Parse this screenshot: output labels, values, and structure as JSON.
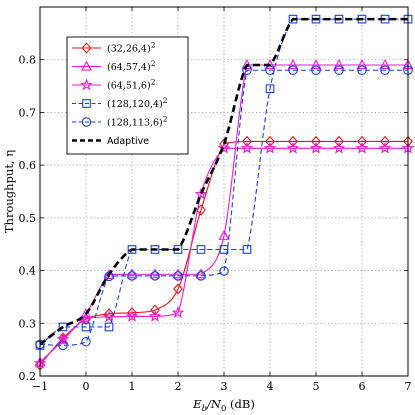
{
  "chart_data": {
    "type": "line",
    "xlabel": "E_b/N_0 (dB)",
    "xlabel_parts": {
      "main": "E",
      "sub1": "b",
      "slash": "/N",
      "sub2": "0",
      "rest": " (dB)"
    },
    "ylabel": "Throughput, η",
    "xlim": [
      -1,
      7
    ],
    "ylim": [
      0.2,
      0.9
    ],
    "xticks": [
      -1,
      0,
      1,
      2,
      3,
      4,
      5,
      6,
      7
    ],
    "xtick_labels": [
      "−1",
      "0",
      "1",
      "2",
      "3",
      "4",
      "5",
      "6",
      "7"
    ],
    "yticks": [
      0.2,
      0.3,
      0.4,
      0.5,
      0.6,
      0.7,
      0.8
    ],
    "ytick_labels": [
      "0.2",
      "0.3",
      "0.4",
      "0.5",
      "0.6",
      "0.7",
      "0.8"
    ],
    "grid": true,
    "legend_position": "top-left",
    "series": [
      {
        "name": "(32,26,4)",
        "legend_sup": "2",
        "color": "#e8141a",
        "dash": "solid",
        "marker": "diamond",
        "x": [
          -1,
          -0.5,
          0,
          0.5,
          1,
          1.5,
          2,
          2.5,
          3,
          3.5,
          4,
          4.5,
          5,
          5.5,
          6,
          6.5,
          7
        ],
        "y": [
          0.221,
          0.272,
          0.308,
          0.318,
          0.32,
          0.325,
          0.365,
          0.515,
          0.64,
          0.645,
          0.645,
          0.645,
          0.645,
          0.645,
          0.645,
          0.645,
          0.645
        ]
      },
      {
        "name": "(64,57,4)",
        "legend_sup": "2",
        "color": "#f217d6",
        "dash": "solid",
        "marker": "triangle",
        "x": [
          -1,
          -0.5,
          0,
          0.5,
          1,
          1.5,
          2,
          2.5,
          3,
          3.5,
          4,
          4.5,
          5,
          5.5,
          6,
          6.5,
          7
        ],
        "y": [
          0.226,
          0.268,
          0.318,
          0.392,
          0.393,
          0.393,
          0.393,
          0.393,
          0.466,
          0.79,
          0.79,
          0.79,
          0.79,
          0.79,
          0.79,
          0.79,
          0.79
        ]
      },
      {
        "name": "(64,51,6)",
        "legend_sup": "2",
        "color": "#f217d6",
        "dash": "solid",
        "marker": "star",
        "x": [
          -1,
          -0.5,
          0,
          0.5,
          1,
          1.5,
          2,
          2.5,
          3,
          3.5,
          4,
          4.5,
          5,
          5.5,
          6,
          6.5,
          7
        ],
        "y": [
          0.224,
          0.27,
          0.309,
          0.312,
          0.313,
          0.313,
          0.32,
          0.545,
          0.632,
          0.632,
          0.632,
          0.632,
          0.632,
          0.632,
          0.632,
          0.632,
          0.632
        ]
      },
      {
        "name": "(128,120,4)",
        "legend_sup": "2",
        "color": "#1a3fe0",
        "dash": "dashed",
        "marker": "square",
        "x": [
          -1,
          -0.5,
          0,
          0.5,
          1,
          1.5,
          2,
          2.5,
          3,
          3.5,
          4,
          4.5,
          5,
          5.5,
          6,
          6.5,
          7
        ],
        "y": [
          0.258,
          0.293,
          0.293,
          0.293,
          0.44,
          0.44,
          0.44,
          0.44,
          0.44,
          0.44,
          0.745,
          0.877,
          0.877,
          0.877,
          0.877,
          0.877,
          0.877
        ]
      },
      {
        "name": "(128,113,6)",
        "legend_sup": "2",
        "color": "#1a3fe0",
        "dash": "dashed",
        "marker": "circle",
        "x": [
          -1,
          -0.5,
          0,
          0.5,
          1,
          1.5,
          2,
          2.5,
          3,
          3.5,
          4,
          4.5,
          5,
          5.5,
          6,
          6.5,
          7
        ],
        "y": [
          0.26,
          0.258,
          0.265,
          0.389,
          0.39,
          0.39,
          0.39,
          0.39,
          0.399,
          0.78,
          0.78,
          0.78,
          0.78,
          0.78,
          0.78,
          0.78,
          0.78
        ]
      },
      {
        "name": "Adaptive",
        "legend_sup": "",
        "color": "#000000",
        "dash": "thick-dashed",
        "marker": "none",
        "x": [
          -1,
          -0.5,
          0,
          0.5,
          1,
          1.5,
          2,
          2.5,
          3,
          3.5,
          4,
          4.5,
          5,
          5.5,
          6,
          6.5,
          7
        ],
        "y": [
          0.26,
          0.293,
          0.318,
          0.393,
          0.44,
          0.44,
          0.44,
          0.545,
          0.64,
          0.79,
          0.79,
          0.877,
          0.877,
          0.877,
          0.877,
          0.877,
          0.877
        ]
      }
    ]
  }
}
